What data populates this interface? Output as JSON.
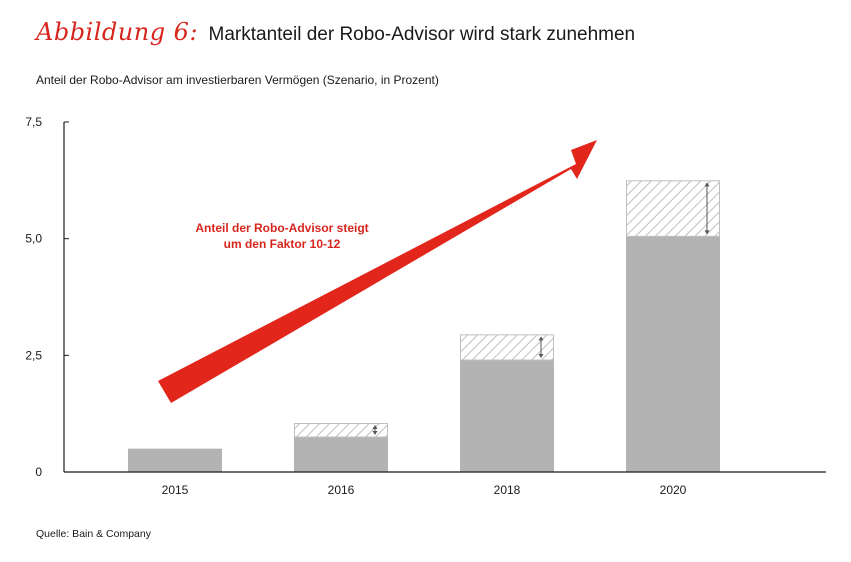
{
  "title": {
    "prefix": "Abbildung 6:",
    "text": "Marktanteil der Robo-Advisor wird stark zunehmen"
  },
  "subtitle": "Anteil der Robo-Advisor am investierbaren Vermögen (Szenario, in Prozent)",
  "source": "Quelle: Bain & Company",
  "colors": {
    "bar": "#b3b3b3",
    "hatch": "#bfbfbf",
    "arrow": "#e2261b",
    "accent_text": "#d7261e",
    "axis": "#1a1a1a"
  },
  "chart_data": {
    "type": "bar",
    "stacked": true,
    "categories": [
      "2015",
      "2016",
      "2018",
      "2020"
    ],
    "series": [
      {
        "values": [
          0.5,
          0.75,
          2.4,
          5.05
        ]
      },
      {
        "values": [
          0,
          0.3,
          0.55,
          1.2
        ]
      }
    ],
    "ylim": [
      0,
      7.5
    ],
    "yticks": [
      0,
      2.5,
      5.0,
      7.5
    ],
    "ytick_labels": [
      "0",
      "2,5",
      "5,0",
      "7,5"
    ],
    "grid": false,
    "annotation": {
      "lines": [
        "Anteil der Robo-Advisor steigt",
        "um den Faktor 10-12"
      ]
    }
  }
}
